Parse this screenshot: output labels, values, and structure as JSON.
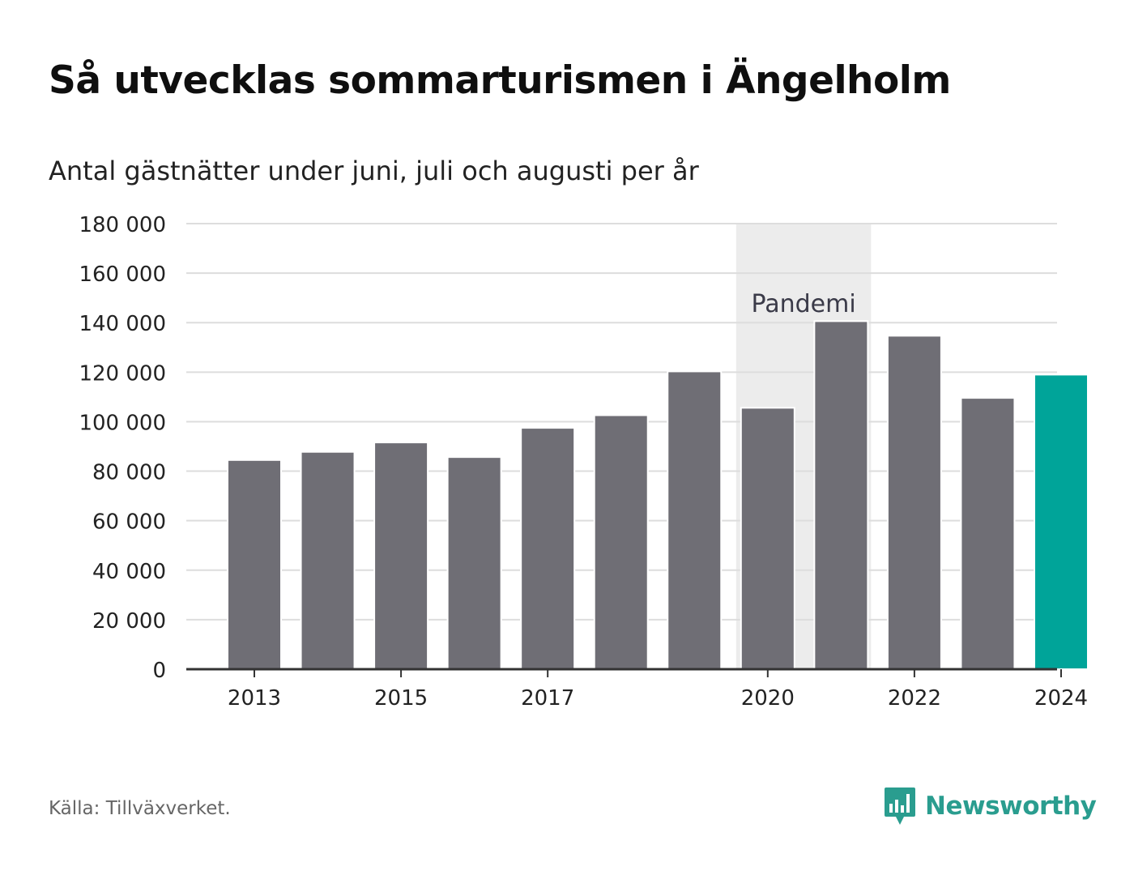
{
  "title": "Så utvecklas sommarturismen i Ängelholm",
  "subtitle": "Antal gästnätter under juni, juli och augusti per år",
  "source": "Källa: Tillväxverket.",
  "brand": {
    "name": "Newsworthy",
    "icon": "bar-chart-icon",
    "color": "#2a9d8f"
  },
  "colors": {
    "bar": "#6f6e75",
    "highlight": "#00a499",
    "band": "#ececec",
    "grid": "#dddddd",
    "axis": "#333333"
  },
  "chart_data": {
    "type": "bar",
    "categories": [
      "2013",
      "2014",
      "2015",
      "2016",
      "2017",
      "2018",
      "2019",
      "2020",
      "2021",
      "2022",
      "2023",
      "2024"
    ],
    "values": [
      84500,
      87800,
      91600,
      85700,
      97500,
      102600,
      120300,
      105600,
      140600,
      134700,
      109600,
      119000
    ],
    "highlight_index": 11,
    "xticks": [
      "2013",
      "2015",
      "2017",
      "2020",
      "2022",
      "2024"
    ],
    "yticks": [
      0,
      20000,
      40000,
      60000,
      80000,
      100000,
      120000,
      140000,
      160000,
      180000
    ],
    "ytick_labels": [
      "0",
      "20 000",
      "40 000",
      "60 000",
      "80 000",
      "100 000",
      "120 000",
      "140 000",
      "160 000",
      "180 000"
    ],
    "ylim": [
      0,
      180000
    ],
    "grid": true,
    "annotation": {
      "label": "Pandemi",
      "from": "2020",
      "to": "2021"
    }
  }
}
